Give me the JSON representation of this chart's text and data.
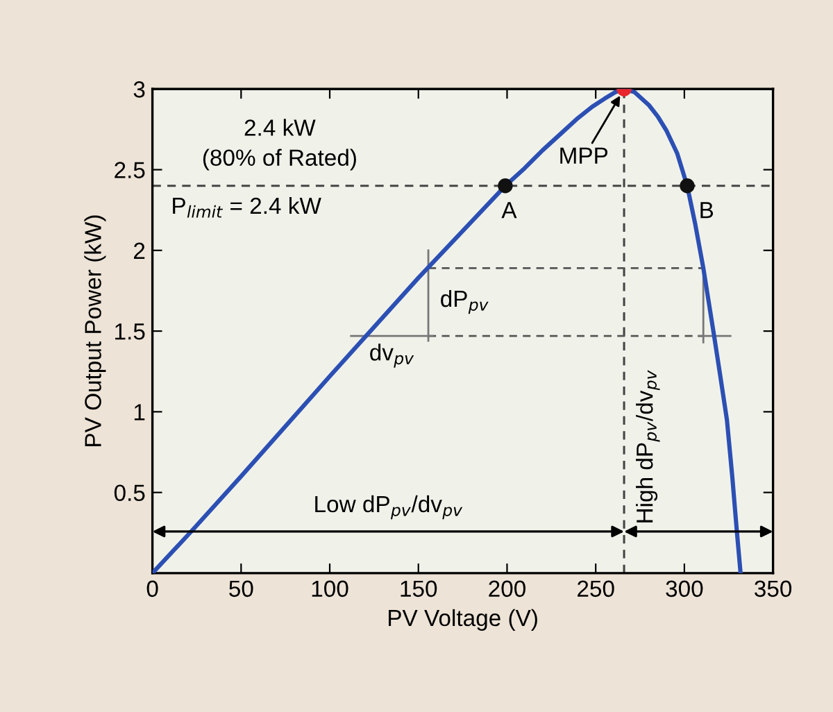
{
  "chart_data": {
    "type": "line",
    "xlabel": "PV Voltage (V)",
    "ylabel": "PV Output Power (kW)",
    "xlim": [
      0,
      350
    ],
    "xticks": [
      0,
      50,
      100,
      150,
      200,
      250,
      300,
      350
    ],
    "ylim": [
      0,
      3
    ],
    "yticks": [
      0.5,
      1,
      1.5,
      2,
      2.5,
      3
    ],
    "series": [
      {
        "color": "#2c4fb3",
        "line_style": "solid",
        "x": [
          0,
          22,
          50,
          100,
          150,
          199,
          210,
          220,
          230,
          240,
          248,
          255,
          261,
          266,
          272,
          280,
          285,
          290,
          296,
          301.6,
          306,
          310.7,
          316.5,
          320,
          324,
          327,
          329.6,
          331.7
        ],
        "values": [
          0,
          0.26,
          0.6,
          1.22,
          1.83,
          2.4,
          2.51,
          2.62,
          2.72,
          2.82,
          2.89,
          2.94,
          2.98,
          3,
          2.98,
          2.9,
          2.83,
          2.74,
          2.6,
          2.4,
          2.17,
          1.89,
          1.49,
          1.24,
          0.95,
          0.6,
          0.26,
          0
        ]
      },
      {
        "type": "line",
        "color": "#555555",
        "line_style": "dashed",
        "x": [
          155.6,
          310.7
        ],
        "values": [
          1.89,
          1.89
        ]
      },
      {
        "type": "line",
        "color": "#555555",
        "line_style": "dashed",
        "x": [
          155.6,
          310.7
        ],
        "values": [
          1.47,
          1.47
        ]
      },
      {
        "type": "line",
        "color": "#777777",
        "line_style": "solid",
        "x": [
          155.6,
          155.6
        ],
        "values": [
          1.44,
          2.0
        ]
      },
      {
        "type": "line",
        "color": "#777777",
        "line_style": "solid",
        "x": [
          112,
          158
        ],
        "values": [
          1.47,
          1.47
        ]
      },
      {
        "type": "line",
        "color": "#777777",
        "line_style": "solid",
        "x": [
          310.7,
          310.7
        ],
        "values": [
          1.43,
          1.89
        ]
      },
      {
        "type": "line",
        "color": "#777777",
        "line_style": "solid",
        "x": [
          308,
          326
        ],
        "values": [
          1.47,
          1.47
        ]
      },
      {
        "type": "scatter",
        "color": "#111111",
        "marker": "circle",
        "x": [
          199,
          301.6
        ],
        "values": [
          2.4,
          2.4
        ]
      },
      {
        "type": "scatter",
        "color": "#e8262b",
        "marker": "circle",
        "x": [
          266
        ],
        "values": [
          3
        ]
      }
    ],
    "ref_lines": [
      {
        "axis": "y",
        "value": 2.4,
        "label": "P$_{limit}$ = 2.4 kW",
        "color": "#444444",
        "line_style": "dashed"
      },
      {
        "axis": "x",
        "value": 266,
        "color": "#444444",
        "line_style": "dashed"
      }
    ],
    "annotations": [
      "2.4 kW\n(80% of Rated)",
      {
        "text": "MPP",
        "x": 266,
        "y": 3
      },
      {
        "text": "A",
        "x": 199,
        "y": 2.4
      },
      {
        "text": "B",
        "x": 301.6,
        "y": 2.4
      },
      {
        "text": "dP$_{pv}$",
        "x": 155.6,
        "y": 1.68
      },
      {
        "text": "dv$_{pv}$",
        "x": 135,
        "y": 1.47
      },
      "Low dP$_{pv}$/dv$_{pv}$",
      "High dP$_{pv}$/dv$_{pv}$"
    ]
  }
}
